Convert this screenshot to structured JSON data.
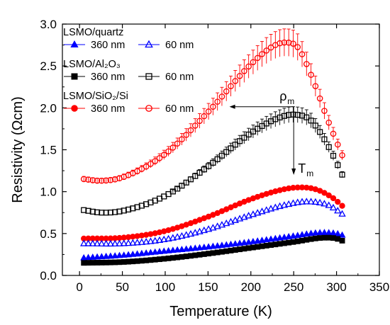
{
  "chart_data": {
    "type": "scatter",
    "xlabel": "Temperature (K)",
    "ylabel": "Resistivity (Ωcm)",
    "xlim": [
      -20,
      350
    ],
    "ylim": [
      0,
      3.0
    ],
    "xticks": [
      "0",
      "50",
      "100",
      "150",
      "200",
      "250",
      "300",
      "350"
    ],
    "yticks": [
      "0.0",
      "0.5",
      "1.0",
      "1.5",
      "2.0",
      "2.5",
      "3.0"
    ],
    "grid": false,
    "legend_placement": "top-left",
    "legend_groups": [
      {
        "label": "LSMO/quartz"
      },
      {
        "label": "LSMO/Al₂O₃"
      },
      {
        "label": "LSMO/SiO₂/Si"
      }
    ],
    "series": [
      {
        "name": "360 nm",
        "group": "LSMO/quartz",
        "marker": "triangle-filled",
        "color": "#0000ff",
        "x": [
          5,
          50,
          100,
          150,
          200,
          250,
          280,
          300,
          310
        ],
        "y": [
          0.21,
          0.24,
          0.29,
          0.34,
          0.4,
          0.47,
          0.51,
          0.5,
          0.47
        ]
      },
      {
        "name": "60 nm",
        "group": "LSMO/quartz",
        "marker": "triangle-open",
        "color": "#0000ff",
        "x": [
          5,
          50,
          100,
          150,
          200,
          240,
          265,
          290,
          310
        ],
        "y": [
          0.38,
          0.38,
          0.43,
          0.55,
          0.72,
          0.84,
          0.88,
          0.84,
          0.71
        ]
      },
      {
        "name": "360 nm",
        "group": "LSMO/Al₂O₃",
        "marker": "square-filled",
        "color": "#000000",
        "x": [
          5,
          50,
          100,
          150,
          200,
          250,
          285,
          300,
          310
        ],
        "y": [
          0.15,
          0.16,
          0.2,
          0.26,
          0.33,
          0.4,
          0.45,
          0.44,
          0.4
        ]
      },
      {
        "name": "60 nm",
        "group": "LSMO/Al₂O₃",
        "marker": "square-open",
        "color": "#000000",
        "x": [
          5,
          25,
          50,
          100,
          150,
          200,
          230,
          250,
          270,
          290,
          310
        ],
        "y": [
          0.78,
          0.75,
          0.77,
          0.95,
          1.3,
          1.7,
          1.87,
          1.92,
          1.85,
          1.55,
          1.13
        ]
      },
      {
        "name": "360 nm",
        "group": "LSMO/SiO₂/Si",
        "marker": "circle-filled",
        "color": "#ff0000",
        "x": [
          5,
          50,
          100,
          150,
          200,
          235,
          255,
          275,
          295,
          310
        ],
        "y": [
          0.44,
          0.45,
          0.53,
          0.7,
          0.91,
          1.02,
          1.05,
          1.03,
          0.93,
          0.8
        ]
      },
      {
        "name": "60 nm",
        "group": "LSMO/SiO₂/Si",
        "marker": "circle-open",
        "color": "#ff0000",
        "x": [
          5,
          25,
          50,
          100,
          150,
          200,
          225,
          240,
          255,
          270,
          290,
          310
        ],
        "y": [
          1.15,
          1.13,
          1.17,
          1.45,
          1.95,
          2.52,
          2.73,
          2.78,
          2.72,
          2.4,
          1.85,
          1.35
        ]
      }
    ],
    "annotations": {
      "rho_label": "ρ",
      "rho_sub": "m",
      "rho_point": {
        "x": 250,
        "y": 1.92
      },
      "rho_arrow_to_x": 175,
      "t_label": "T",
      "t_sub": "m",
      "t_arrow_to_y": 1.2
    }
  }
}
